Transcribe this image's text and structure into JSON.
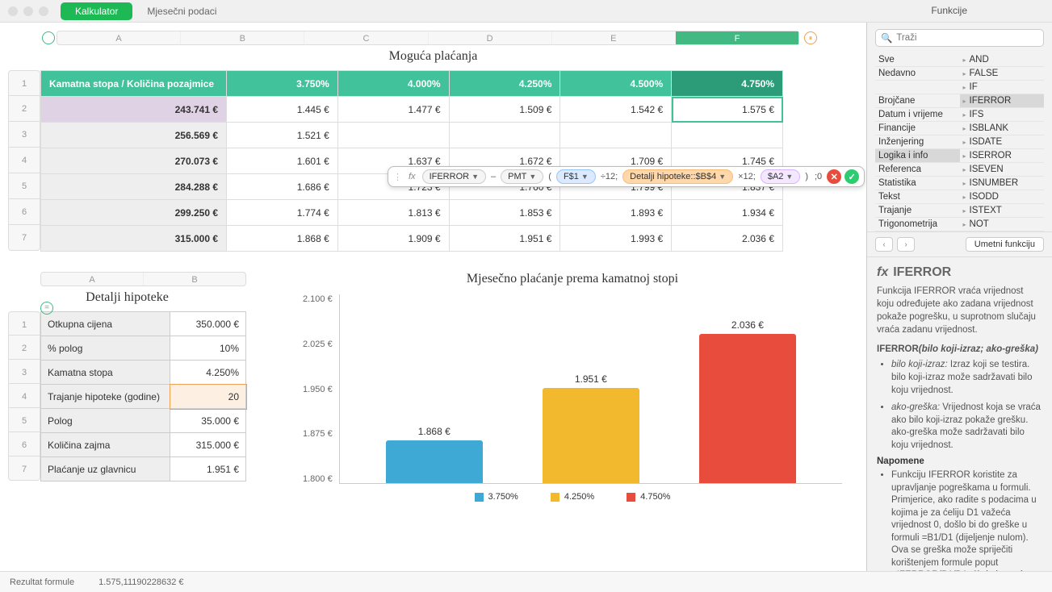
{
  "tabs": {
    "active": "Kalkulator",
    "inactive": "Mjesečni podaci"
  },
  "sidepanel_title": "Funkcije",
  "main_table": {
    "title": "Moguća plaćanja",
    "columns": [
      "A",
      "B",
      "C",
      "D",
      "E",
      "F"
    ],
    "header_label": "Kamatna stopa / Količina pozajmice",
    "rates": [
      "3.750%",
      "4.000%",
      "4.250%",
      "4.500%",
      "4.750%"
    ],
    "row_numbers": [
      "1",
      "2",
      "3",
      "4",
      "5",
      "6",
      "7"
    ],
    "rows": [
      {
        "label": "243.741 €",
        "cells": [
          "1.445 €",
          "1.477 €",
          "1.509 €",
          "1.542 €",
          "1.575 €"
        ]
      },
      {
        "label": "256.569 €",
        "cells": [
          "1.521 €",
          "",
          "",
          "",
          ""
        ]
      },
      {
        "label": "270.073 €",
        "cells": [
          "1.601 €",
          "1.637 €",
          "1.672 €",
          "1.709 €",
          "1.745 €"
        ]
      },
      {
        "label": "284.288 €",
        "cells": [
          "1.686 €",
          "1.723 €",
          "1.760 €",
          "1.799 €",
          "1.837 €"
        ]
      },
      {
        "label": "299.250 €",
        "cells": [
          "1.774 €",
          "1.813 €",
          "1.853 €",
          "1.893 €",
          "1.934 €"
        ]
      },
      {
        "label": "315.000 €",
        "cells": [
          "1.868 €",
          "1.909 €",
          "1.951 €",
          "1.993 €",
          "2.036 €"
        ]
      }
    ],
    "selected_col": "F"
  },
  "formula_bar": {
    "fn": "IFERROR",
    "fn2": "PMT",
    "tok1": "F$1",
    "txt1": "÷12;",
    "tok2": "Detalji hipoteke::$B$4",
    "txt2": "×12;",
    "tok3": "$A2",
    "txt3": " ;0"
  },
  "details": {
    "title": "Detalji hipoteke",
    "columns": [
      "A",
      "B"
    ],
    "row_numbers": [
      "1",
      "2",
      "3",
      "4",
      "5",
      "6",
      "7"
    ],
    "rows": [
      [
        "Otkupna cijena",
        "350.000 €"
      ],
      [
        "% polog",
        "10%"
      ],
      [
        "Kamatna stopa",
        "4.250%"
      ],
      [
        "Trajanje hipoteke (godine)",
        "20"
      ],
      [
        "Polog",
        "35.000 €"
      ],
      [
        "Količina zajma",
        "315.000 €"
      ],
      [
        "Plaćanje uz glavnicu",
        "1.951 €"
      ]
    ],
    "highlight_row": 3
  },
  "chart": {
    "title": "Mjesečno plaćanje prema kamatnoj stopi",
    "type": "bar",
    "ymin": 1800,
    "ymax": 2100,
    "yticks": [
      "2.100 €",
      "2.025 €",
      "1.950 €",
      "1.875 €",
      "1.800 €"
    ],
    "bars": [
      {
        "label": "3.750%",
        "value": 1868,
        "display": "1.868 €",
        "color": "#3fa9d6"
      },
      {
        "label": "4.250%",
        "value": 1951,
        "display": "1.951 €",
        "color": "#f2b92f"
      },
      {
        "label": "4.750%",
        "value": 2036,
        "display": "2.036 €",
        "color": "#e84c3d"
      }
    ],
    "background": "#ffffff",
    "label_fontsize": 12
  },
  "search_placeholder": "Traži",
  "categories": [
    "Sve",
    "Nedavno",
    "",
    "Brojčane",
    "Datum i vrijeme",
    "Financije",
    "Inženjering",
    "Logika i info",
    "Referenca",
    "Statistika",
    "Tekst",
    "Trajanje",
    "Trigonometrija"
  ],
  "category_selected": "Logika i info",
  "functions": [
    "AND",
    "FALSE",
    "IF",
    "IFERROR",
    "IFS",
    "ISBLANK",
    "ISDATE",
    "ISERROR",
    "ISEVEN",
    "ISNUMBER",
    "ISODD",
    "ISTEXT",
    "NOT"
  ],
  "function_selected": "IFERROR",
  "insert_label": "Umetni funkciju",
  "help": {
    "title": "IFERROR",
    "desc": "Funkcija IFERROR vraća vrijednost koju određujete ako zadana vrijednost pokaže pogrešku, u suprotnom slučaju vraća zadanu vrijednost.",
    "syntax": "IFERROR(bilo koji-izraz; ako-greška)",
    "params": [
      {
        "name": "bilo koji-izraz:",
        "text": "Izraz koji se testira. bilo koji-izraz može sadržavati bilo koju vrijednost."
      },
      {
        "name": "ako-greška:",
        "text": "Vrijednost koja se vraća ako bilo koji-izraz pokaže grešku. ako-greška može sadržavati bilo koju vrijednost."
      }
    ],
    "notes_title": "Napomene",
    "notes": "Funkciju IFERROR koristite za upravljanje pogreškama u formuli. Primjerice, ako radite s podacima u kojima je za ćeliju D1 važeća vrijednost 0, došlo bi do greške u formuli =B1/D1 (dijeljenje nulom). Ova se greška može spriječiti korištenjem formule poput =IFERROR(B1/D1, 0), koja vraća stvarno dijeljenje ako D1 nije 0, u suprotnom slučaju vraća 0."
  },
  "statusbar": {
    "label": "Rezultat formule",
    "value": "1.575,11190228632 €"
  }
}
